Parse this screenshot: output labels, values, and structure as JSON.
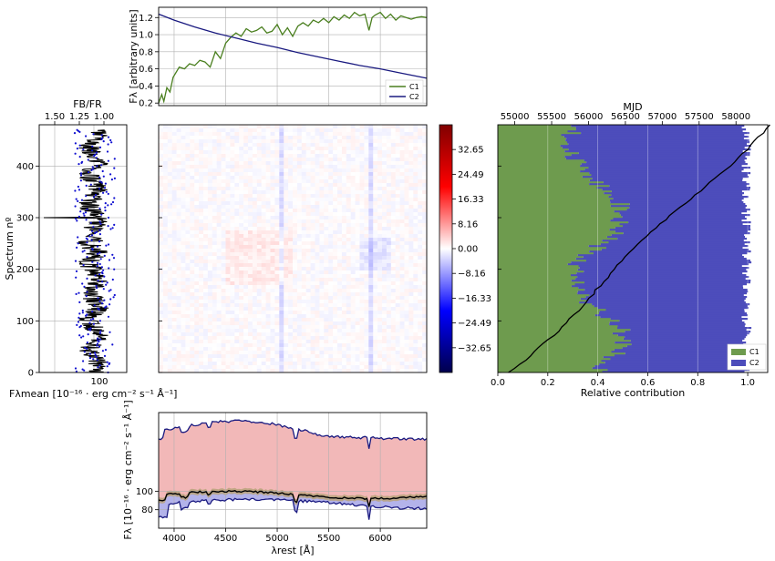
{
  "chart_data": [
    {
      "id": "top_spectra",
      "type": "line",
      "ylabel": "Fλ [arbitrary units]",
      "xlim": [
        3850,
        6450
      ],
      "ylim": [
        0.17,
        1.32
      ],
      "yticks": [
        "0.2",
        "0.4",
        "0.6",
        "0.8",
        "1.0",
        "1.2"
      ],
      "ytick_values": [
        0.2,
        0.4,
        0.6,
        0.8,
        1.0,
        1.2
      ],
      "xgrid": [
        4000,
        4500,
        5000,
        5500,
        6000
      ],
      "grid": true,
      "legend_position": "bottom-right",
      "series": [
        {
          "name": "C1",
          "color": "#4a7f1f",
          "x": [
            3850,
            3880,
            3900,
            3930,
            3960,
            3990,
            4050,
            4100,
            4150,
            4200,
            4250,
            4300,
            4350,
            4400,
            4450,
            4500,
            4550,
            4600,
            4650,
            4700,
            4750,
            4800,
            4850,
            4900,
            4950,
            5000,
            5050,
            5100,
            5150,
            5200,
            5250,
            5300,
            5350,
            5400,
            5450,
            5500,
            5550,
            5600,
            5650,
            5700,
            5750,
            5800,
            5850,
            5890,
            5920,
            5950,
            6000,
            6050,
            6100,
            6150,
            6200,
            6250,
            6300,
            6350,
            6400,
            6450
          ],
          "y": [
            0.2,
            0.3,
            0.22,
            0.38,
            0.33,
            0.5,
            0.62,
            0.6,
            0.66,
            0.64,
            0.7,
            0.68,
            0.62,
            0.8,
            0.72,
            0.9,
            0.97,
            1.02,
            0.98,
            1.07,
            1.03,
            1.05,
            1.09,
            1.02,
            1.04,
            1.12,
            1.0,
            1.08,
            0.98,
            1.1,
            1.14,
            1.1,
            1.17,
            1.14,
            1.19,
            1.14,
            1.21,
            1.17,
            1.23,
            1.19,
            1.26,
            1.22,
            1.24,
            1.05,
            1.2,
            1.23,
            1.26,
            1.19,
            1.24,
            1.17,
            1.22,
            1.2,
            1.18,
            1.2,
            1.21,
            1.2
          ]
        },
        {
          "name": "C2",
          "color": "#1a1a80",
          "x": [
            3850,
            4000,
            4200,
            4400,
            4600,
            4800,
            5000,
            5200,
            5400,
            5600,
            5800,
            6000,
            6200,
            6450
          ],
          "y": [
            1.24,
            1.17,
            1.09,
            1.02,
            0.96,
            0.9,
            0.85,
            0.79,
            0.74,
            0.69,
            0.64,
            0.6,
            0.55,
            0.49
          ]
        }
      ]
    },
    {
      "id": "left_ratio",
      "type": "scatter",
      "xlabel": "Fλmean [10⁻¹⁶ · erg cm⁻² s⁻¹ Å⁻¹]",
      "ylabel": "Spectrum nº",
      "top_xlabel": "FB/FR",
      "ylim": [
        0,
        480
      ],
      "yticks": [
        "0",
        "100",
        "200",
        "300",
        "400"
      ],
      "ytick_values": [
        0,
        100,
        200,
        300,
        400
      ],
      "xticks": [
        "100"
      ],
      "top_xticks": [
        "1.50",
        "1.25",
        "1.00"
      ],
      "grid": true,
      "series": [
        {
          "name": "mean flux",
          "color": "#000000"
        },
        {
          "name": "flux ratio",
          "color": "#1010d0"
        }
      ]
    },
    {
      "id": "middle_residuals",
      "type": "heatmap",
      "colorbar_ticks": [
        "32.65",
        "24.49",
        "16.33",
        "8.16",
        "0.00",
        "−8.16",
        "−16.33",
        "−24.49",
        "−32.65"
      ],
      "colorbar_values": [
        32.65,
        24.49,
        16.33,
        8.16,
        0.0,
        -8.16,
        -16.33,
        -24.49,
        -32.65
      ],
      "colorbar_range": [
        -40.8,
        40.8
      ],
      "colormap": "seismic"
    },
    {
      "id": "right_contribution",
      "type": "bar",
      "xlabel": "Relative contribution",
      "top_xlabel": "MJD",
      "xlim": [
        0.0,
        1.08
      ],
      "xticks": [
        "0.0",
        "0.2",
        "0.4",
        "0.6",
        "0.8",
        "1.0"
      ],
      "xtick_values": [
        0.0,
        0.2,
        0.4,
        0.6,
        0.8,
        1.0
      ],
      "top_xticks": [
        "55000",
        "55500",
        "56000",
        "56500",
        "57000",
        "57500",
        "58000"
      ],
      "top_xtick_values": [
        55000,
        55500,
        56000,
        56500,
        57000,
        57500,
        58000
      ],
      "mjd_range": [
        54770,
        58430
      ],
      "legend_position": "bottom-right",
      "series": [
        {
          "name": "C1",
          "color": "#6e9b4e"
        },
        {
          "name": "C2",
          "color": "#4d4dbb"
        },
        {
          "name": "MJD",
          "color": "#000000"
        }
      ]
    },
    {
      "id": "bottom_flux",
      "type": "area",
      "xlabel": "λrest [Å]",
      "ylabel": "Fλ [10⁻¹⁶ · erg cm⁻² s⁻¹ Å⁻¹]",
      "xlim": [
        3850,
        6450
      ],
      "ylim": [
        60,
        185
      ],
      "xticks": [
        "4000",
        "4500",
        "5000",
        "5500",
        "6000"
      ],
      "xtick_values": [
        4000,
        4500,
        5000,
        5500,
        6000
      ],
      "yticks": [
        "80",
        "100"
      ],
      "ytick_values": [
        80,
        100
      ],
      "grid": true,
      "series": [
        {
          "name": "upper envelope",
          "color": "#1a1a80"
        },
        {
          "name": "lower envelope",
          "color": "#1a1a80"
        },
        {
          "name": "mean",
          "color": "#000000"
        }
      ]
    }
  ]
}
